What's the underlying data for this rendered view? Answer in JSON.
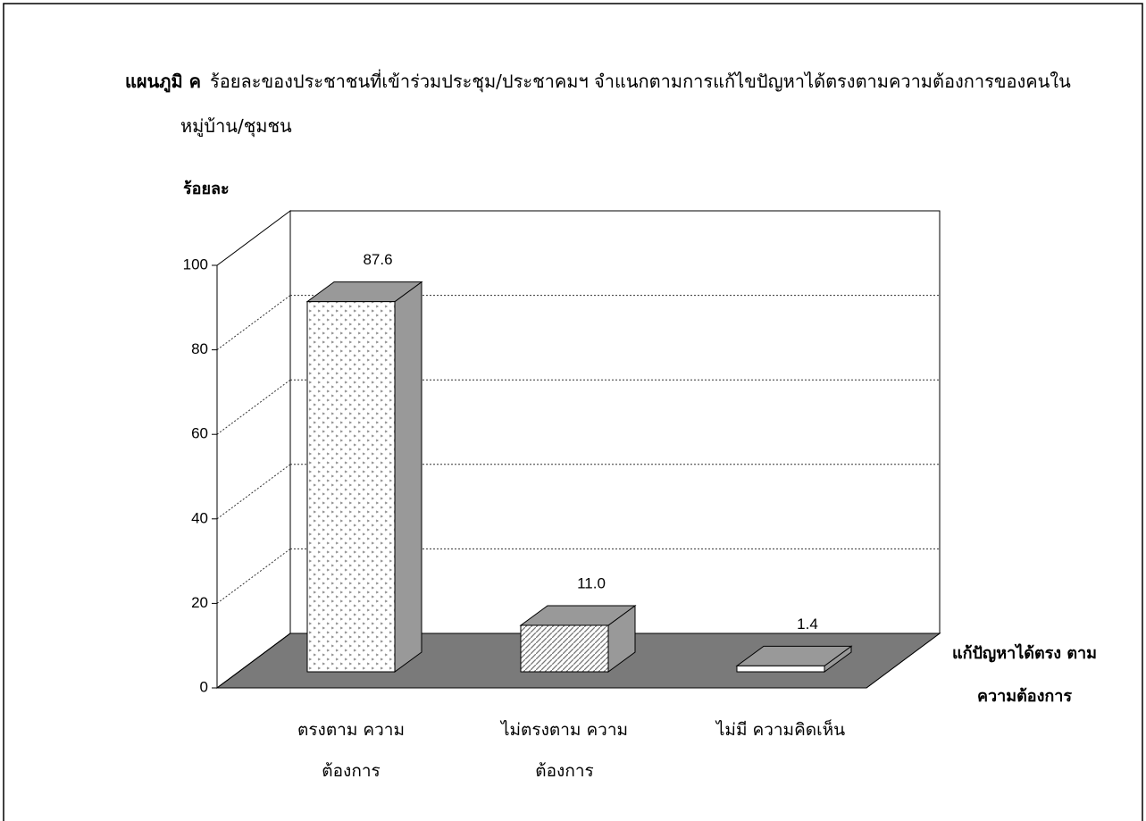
{
  "chart_data": {
    "type": "bar3d",
    "figure_label": "แผนภูมิ ค",
    "title": "ร้อยละของประชาชนที่เข้าร่วมประชุม/ประชาคมฯ จำแนกตามการแก้ไขปัญหาได้ตรงตามความต้องการของคนในหมู่บ้าน/ชุมชน",
    "y_label": "ร้อยละ",
    "x_label": "แก้ปัญหาได้ตรง ตามความต้องการ",
    "categories": [
      "ตรงตาม ความต้องการ",
      "ไม่ตรงตาม ความต้องการ",
      "ไม่มี ความคิดเห็น"
    ],
    "values": [
      87.6,
      11.0,
      1.4
    ],
    "value_labels": [
      "87.6",
      "11.0",
      "1.4"
    ],
    "ylim": [
      0,
      100
    ],
    "yticks": [
      0,
      20,
      40,
      60,
      80,
      100
    ],
    "grid": true
  }
}
